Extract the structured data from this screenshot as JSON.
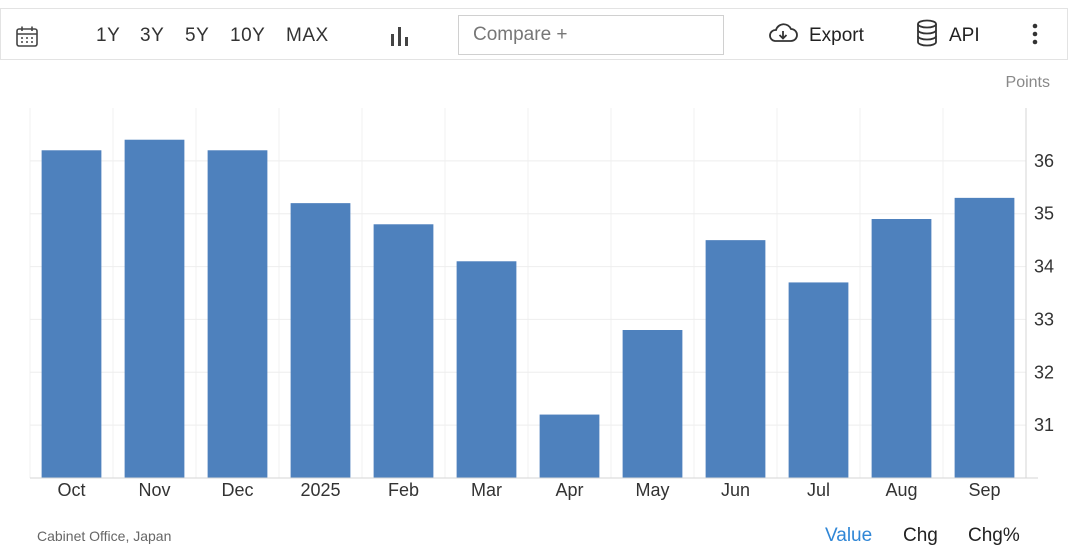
{
  "toolbar": {
    "ranges": [
      "1Y",
      "3Y",
      "5Y",
      "10Y",
      "MAX"
    ],
    "compare_placeholder": "Compare +",
    "export_label": "Export",
    "api_label": "API"
  },
  "units_label": "Points",
  "source": "Cabinet Office, Japan",
  "view_toggle": {
    "value": "Value",
    "chg": "Chg",
    "chgpct": "Chg%",
    "active_color": "#2f86d6"
  },
  "chart_data": {
    "type": "bar",
    "categories": [
      "Oct",
      "Nov",
      "Dec",
      "2025",
      "Feb",
      "Mar",
      "Apr",
      "May",
      "Jun",
      "Jul",
      "Aug",
      "Sep"
    ],
    "values": [
      36.2,
      36.4,
      36.2,
      35.2,
      34.8,
      34.1,
      31.2,
      32.8,
      34.5,
      33.7,
      34.9,
      35.3
    ],
    "ylim": [
      30,
      37
    ],
    "yticks": [
      31,
      32,
      33,
      34,
      35,
      36
    ],
    "grid": true,
    "bar_color": "#4e81bd",
    "y_axis_side": "right"
  }
}
